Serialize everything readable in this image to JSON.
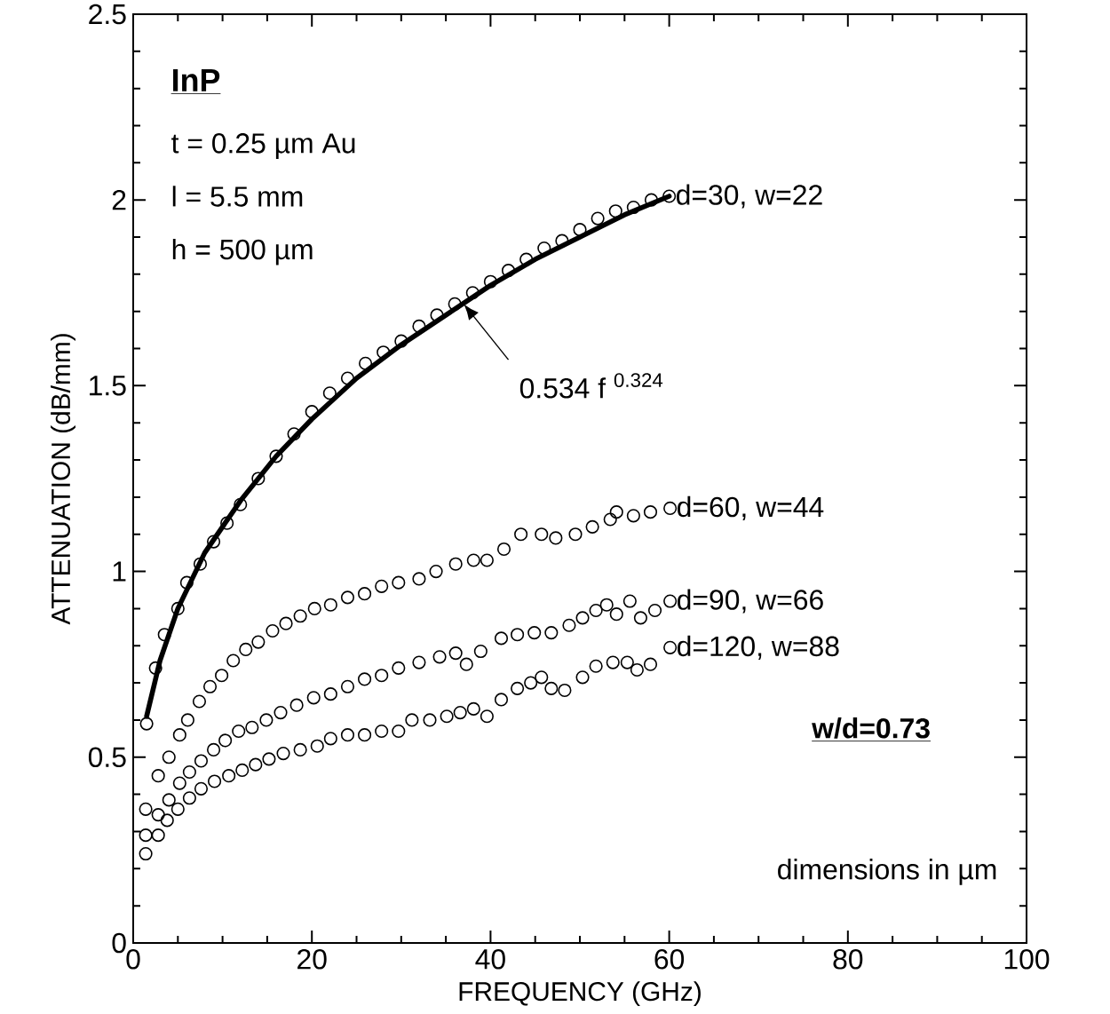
{
  "chart_data": {
    "type": "scatter",
    "xlabel": "FREQUENCY (GHz)",
    "ylabel": "ATTENUATION  (dB/mm)",
    "xlim": [
      0,
      100
    ],
    "ylim": [
      0,
      2.5
    ],
    "xticks": [
      0,
      20,
      40,
      60,
      80,
      100
    ],
    "yticks": [
      0,
      0.5,
      1,
      1.5,
      2,
      2.5
    ],
    "marker": "circle",
    "series": [
      {
        "name": "d=30,  w=22",
        "color": "#000000",
        "x": [
          1.5,
          2.5,
          3.5,
          5,
          6,
          7.5,
          9,
          10.5,
          12,
          14,
          16,
          18,
          20,
          22,
          24,
          26,
          28,
          30,
          32,
          34,
          36,
          38,
          40,
          42,
          44,
          46,
          48,
          50,
          52,
          54,
          56,
          58,
          60
        ],
        "values": [
          0.59,
          0.74,
          0.83,
          0.9,
          0.97,
          1.02,
          1.08,
          1.13,
          1.18,
          1.25,
          1.31,
          1.37,
          1.43,
          1.48,
          1.52,
          1.56,
          1.59,
          1.62,
          1.66,
          1.69,
          1.72,
          1.75,
          1.78,
          1.81,
          1.84,
          1.87,
          1.89,
          1.92,
          1.95,
          1.97,
          1.98,
          2.0,
          2.01
        ]
      },
      {
        "type": "line",
        "marker": "none",
        "color": "#000000",
        "x": [
          1.5,
          3,
          5,
          8,
          12,
          16,
          20,
          25,
          30,
          35,
          40,
          45,
          50,
          55,
          60
        ],
        "values": [
          0.61,
          0.76,
          0.9,
          1.05,
          1.19,
          1.31,
          1.41,
          1.52,
          1.61,
          1.69,
          1.77,
          1.84,
          1.9,
          1.96,
          2.01
        ]
      },
      {
        "name": "d=60,  w=44",
        "color": "#000000",
        "x": [
          1.4,
          2.8,
          4,
          5.2,
          6.1,
          7.4,
          8.6,
          9.9,
          11.2,
          12.6,
          14,
          15.6,
          17.1,
          18.7,
          20.3,
          22.1,
          24,
          25.9,
          27.8,
          29.7,
          32,
          33.9,
          36.1,
          38.1,
          39.6,
          41.5,
          43.4,
          45.7,
          47.3,
          49.5,
          51.4,
          53.4,
          54.1,
          56,
          57.9,
          60.1
        ],
        "values": [
          0.36,
          0.45,
          0.5,
          0.56,
          0.6,
          0.65,
          0.69,
          0.72,
          0.76,
          0.79,
          0.81,
          0.84,
          0.86,
          0.88,
          0.9,
          0.91,
          0.93,
          0.94,
          0.96,
          0.97,
          0.98,
          1.0,
          1.02,
          1.03,
          1.03,
          1.06,
          1.1,
          1.1,
          1.09,
          1.1,
          1.12,
          1.14,
          1.16,
          1.15,
          1.16,
          1.17
        ]
      },
      {
        "name": "d=90,  w=66",
        "color": "#000000",
        "x": [
          1.4,
          2.8,
          4,
          5.2,
          6.3,
          7.6,
          9,
          10.3,
          11.8,
          13.3,
          14.9,
          16.5,
          18.3,
          20.2,
          22.1,
          24,
          25.9,
          27.8,
          29.7,
          32,
          34.3,
          36.1,
          37.3,
          38.9,
          41.2,
          43,
          44.9,
          46.8,
          48.8,
          50.3,
          51.8,
          53,
          54.1,
          55.6,
          56.8,
          58.4,
          60.1
        ],
        "values": [
          0.29,
          0.345,
          0.385,
          0.43,
          0.46,
          0.49,
          0.52,
          0.545,
          0.57,
          0.58,
          0.6,
          0.62,
          0.64,
          0.66,
          0.67,
          0.69,
          0.71,
          0.72,
          0.74,
          0.755,
          0.77,
          0.78,
          0.75,
          0.785,
          0.82,
          0.83,
          0.835,
          0.835,
          0.855,
          0.875,
          0.895,
          0.91,
          0.885,
          0.92,
          0.875,
          0.895,
          0.92
        ]
      },
      {
        "name": "d=120,  w=88",
        "color": "#000000",
        "x": [
          1.4,
          2.8,
          3.8,
          5,
          6.3,
          7.6,
          9.1,
          10.7,
          12.2,
          13.7,
          15.2,
          16.8,
          18.7,
          20.6,
          22.1,
          24,
          25.9,
          27.8,
          29.7,
          31.2,
          33.2,
          35.1,
          36.6,
          38.1,
          39.6,
          41.2,
          43,
          44.5,
          45.7,
          46.8,
          48.3,
          50.3,
          51.8,
          53.7,
          55.3,
          56.4,
          57.9,
          60.1
        ],
        "values": [
          0.24,
          0.29,
          0.33,
          0.36,
          0.39,
          0.415,
          0.435,
          0.45,
          0.465,
          0.48,
          0.495,
          0.51,
          0.52,
          0.53,
          0.55,
          0.56,
          0.56,
          0.57,
          0.57,
          0.6,
          0.6,
          0.61,
          0.62,
          0.63,
          0.61,
          0.655,
          0.685,
          0.7,
          0.715,
          0.685,
          0.68,
          0.715,
          0.745,
          0.755,
          0.755,
          0.735,
          0.75,
          0.795
        ]
      }
    ],
    "annotations": [
      "InP",
      "t = 0.25 µm Au",
      "l = 5.5 mm",
      "h = 500 µm",
      "w/d=0.73",
      "dimensions  in µm",
      {
        "text": "0.534 f $^{0.324}$",
        "x": 37,
        "y": 1.72
      }
    ]
  }
}
